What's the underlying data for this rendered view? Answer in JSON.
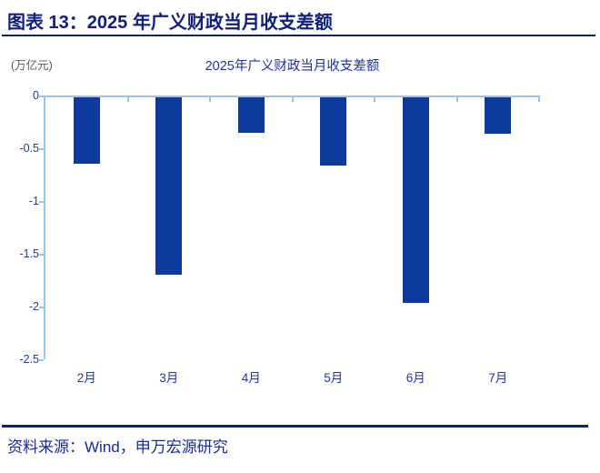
{
  "header": {
    "title": "图表 13：2025 年广义财政当月收支差额"
  },
  "chart_data": {
    "type": "bar",
    "title": "2025年广义财政当月收支差额",
    "unit_label": "(万亿元)",
    "categories": [
      "2月",
      "3月",
      "4月",
      "5月",
      "6月",
      "7月"
    ],
    "values": [
      -0.63,
      -1.69,
      -0.34,
      -0.65,
      -1.96,
      -0.35
    ],
    "ylim": [
      -2.5,
      0
    ],
    "yticks": [
      0,
      -0.5,
      -1,
      -1.5,
      -2,
      -2.5
    ],
    "ytick_labels": [
      "0",
      "-0.5",
      "-1",
      "-1.5",
      "-2",
      "-2.5"
    ],
    "bar_color": "#0D3A9C",
    "axis_color": "#9DC3E6",
    "label_color": "#23399F",
    "grid": false,
    "legend": "none"
  },
  "footer": {
    "source": "资料来源：Wind，申万宏源研究"
  }
}
